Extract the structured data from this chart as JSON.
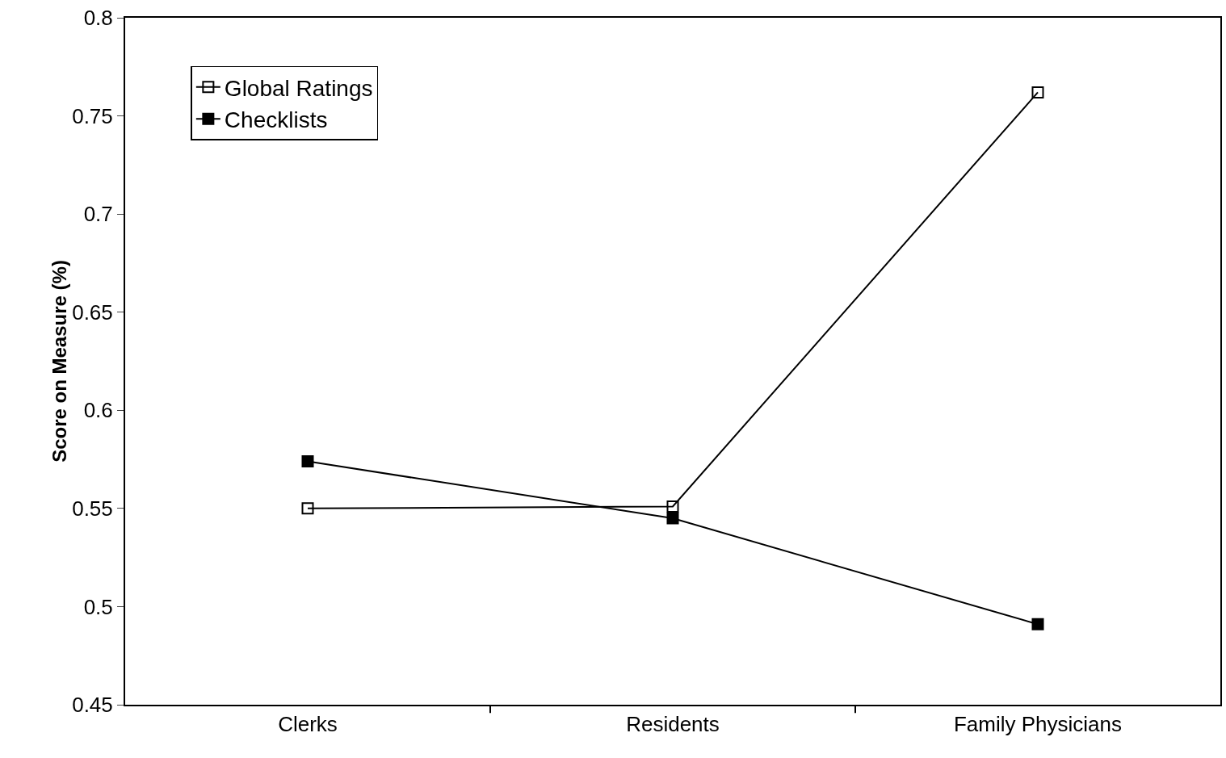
{
  "chart_data": {
    "type": "line",
    "ylabel": "Score on Measure (%)",
    "categories": [
      "Clerks",
      "Residents",
      "Family Physicians"
    ],
    "series": [
      {
        "name": "Global Ratings",
        "color": "#000000",
        "marker": "square-open",
        "values": [
          0.55,
          0.551,
          0.762
        ]
      },
      {
        "name": "Checklists",
        "color": "#000000",
        "marker": "square",
        "values": [
          0.574,
          0.545,
          0.491
        ]
      }
    ],
    "ylim": [
      0.45,
      0.8
    ],
    "yticks": [
      0.45,
      0.5,
      0.55,
      0.6,
      0.65,
      0.7,
      0.75,
      0.8
    ],
    "grid": false,
    "legend": "top left",
    "line_style": "solid"
  }
}
